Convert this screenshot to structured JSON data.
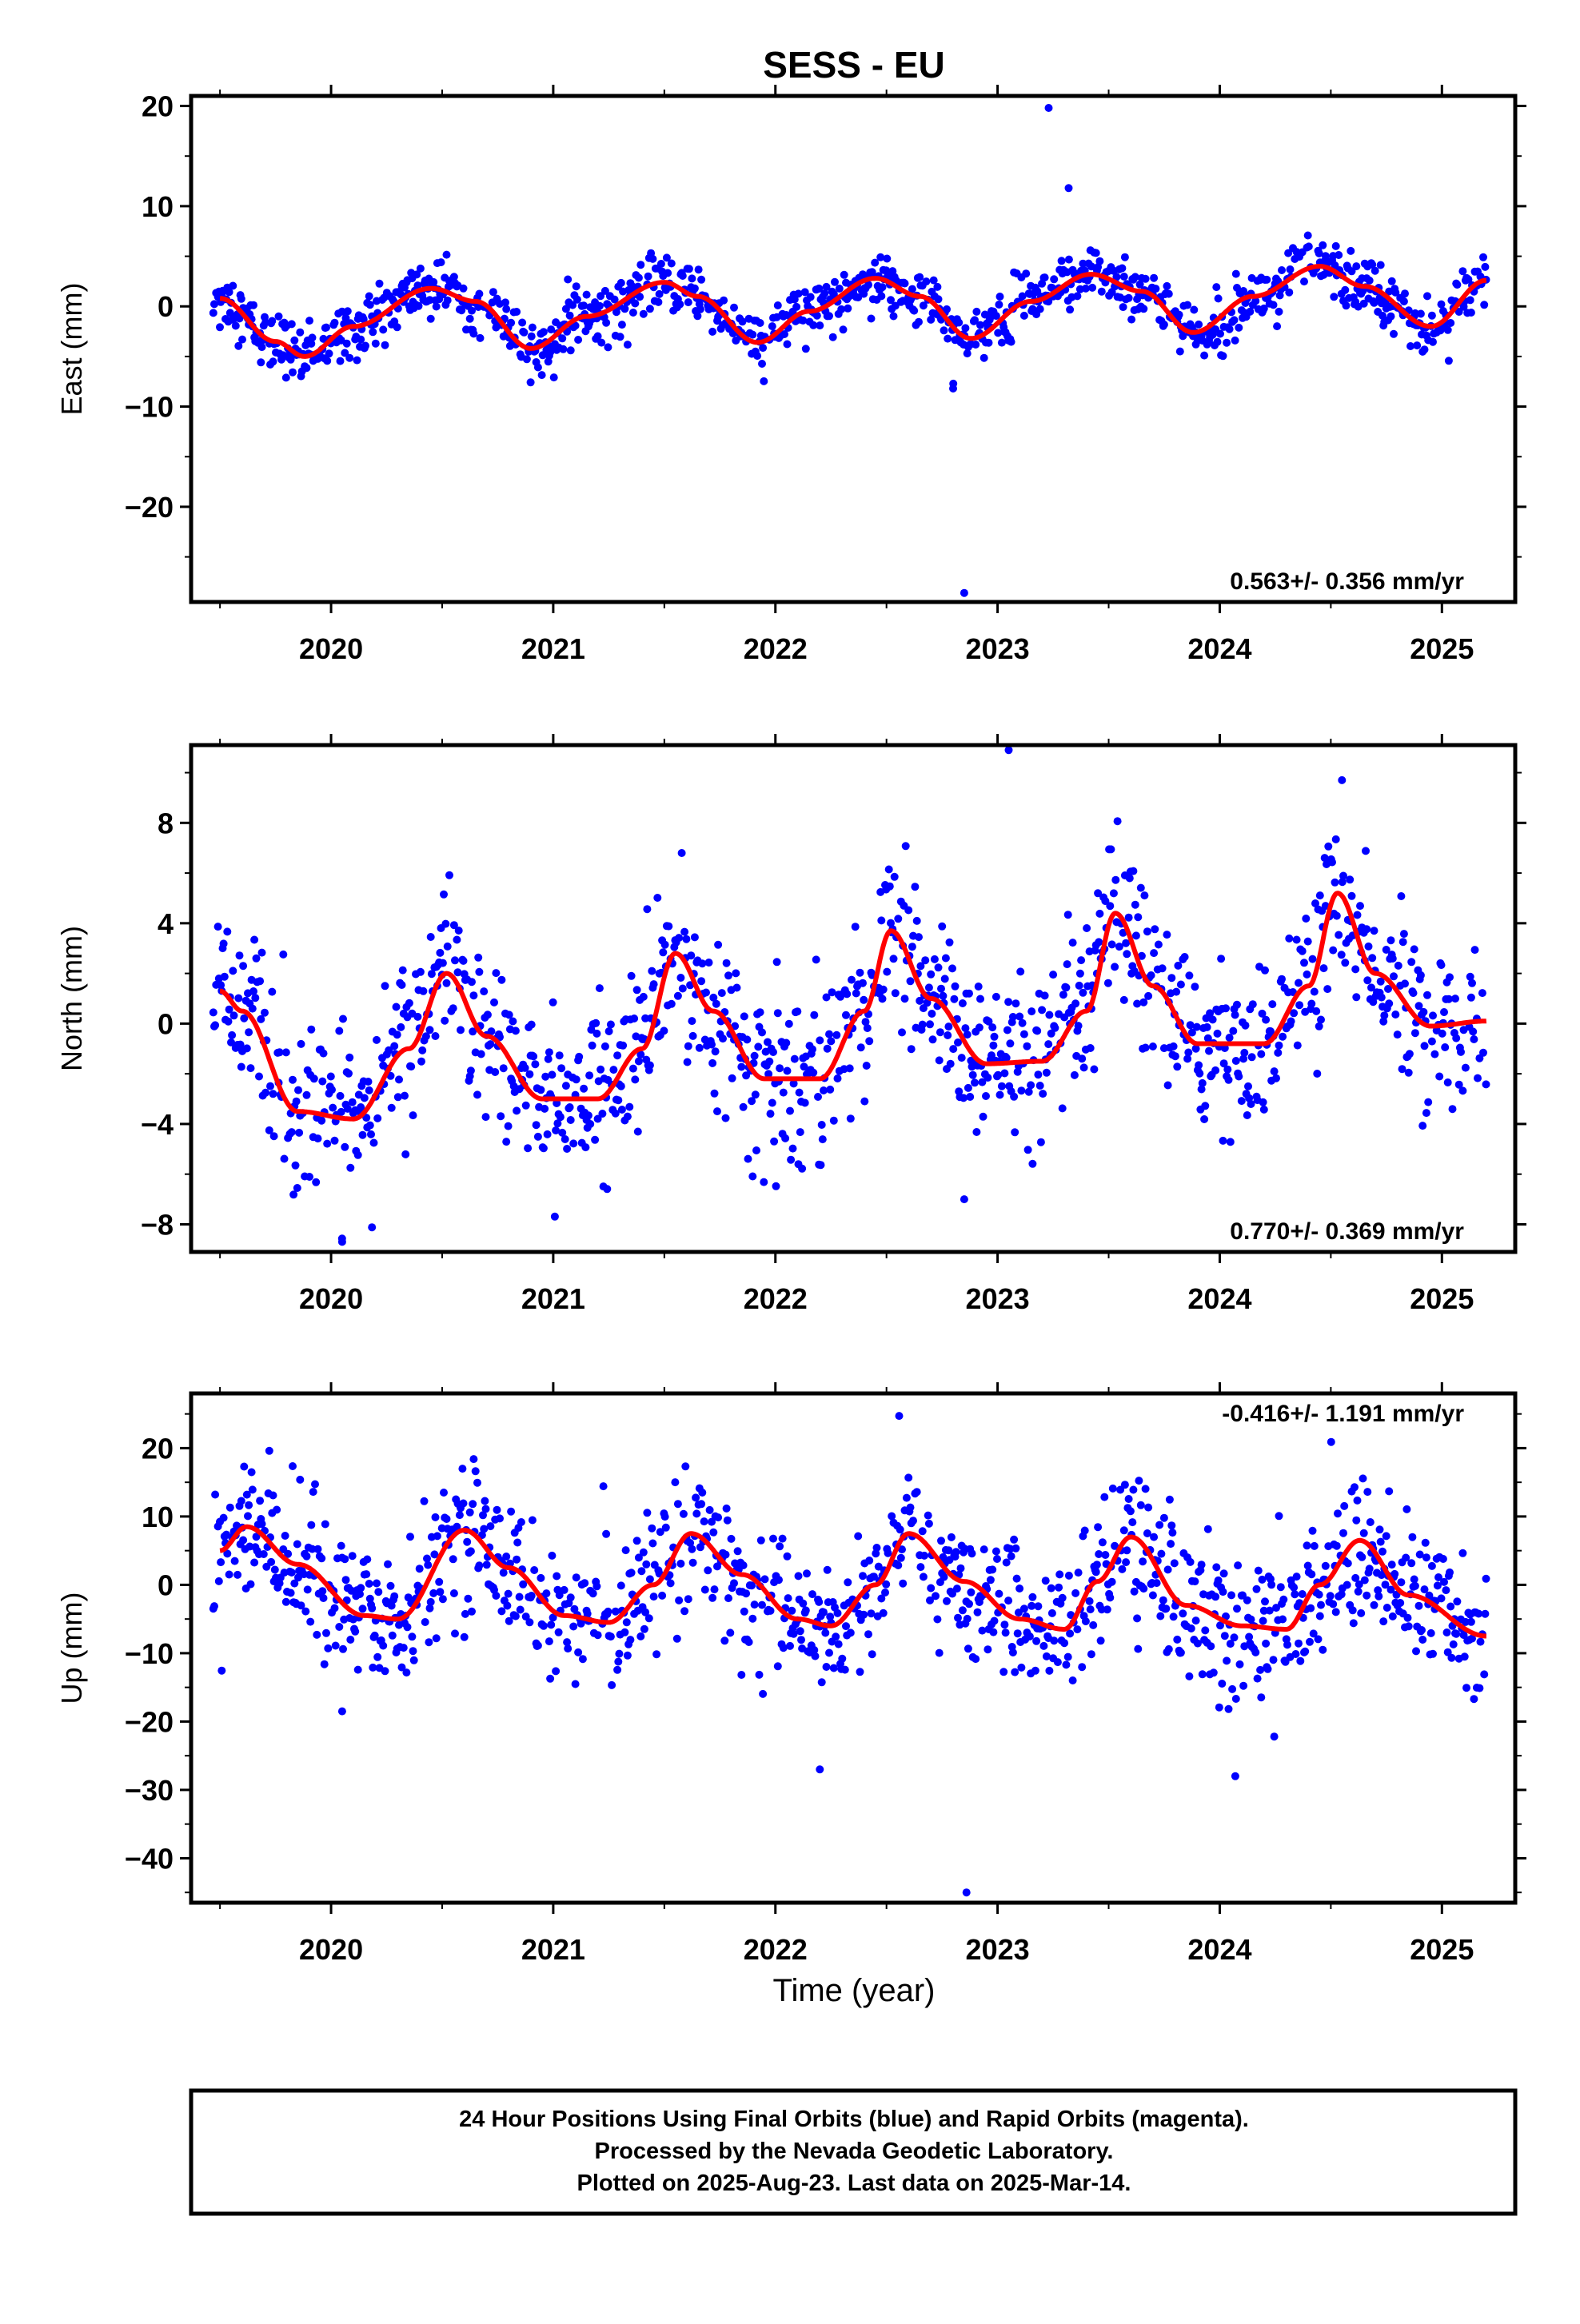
{
  "figure": {
    "title": "SESS - EU",
    "xlabel": "Time (year)",
    "footer_lines": [
      "24 Hour Positions Using Final Orbits (blue) and Rapid Orbits (magenta).",
      "Processed by the Nevada Geodetic Laboratory.",
      "Plotted on 2025-Aug-23. Last data on 2025-Mar-14."
    ],
    "colors": {
      "observations": "#0000ff",
      "model": "#ff0000",
      "frame": "#000000"
    }
  },
  "chart_data": [
    {
      "type": "scatter",
      "ylabel": "East (mm)",
      "xlim": [
        2019.37,
        2025.33
      ],
      "ylim": [
        -29.5,
        21
      ],
      "x_ticks": [
        2020,
        2021,
        2022,
        2023,
        2024,
        2025
      ],
      "y_ticks": [
        -20,
        -10,
        0,
        10,
        20
      ],
      "y_tick_labels": [
        "−20",
        "−10",
        "0",
        "10",
        "20"
      ],
      "rate_label": "0.563+/- 0.356 mm/yr",
      "rate_position": "bottom-right",
      "model": {
        "x": [
          2019.5,
          2019.75,
          2019.88,
          2020.1,
          2020.45,
          2020.65,
          2020.9,
          2021.15,
          2021.5,
          2021.65,
          2021.92,
          2022.15,
          2022.45,
          2022.65,
          2022.88,
          2023.15,
          2023.42,
          2023.65,
          2023.88,
          2024.15,
          2024.45,
          2024.65,
          2024.95,
          2025.2
        ],
        "y": [
          0.8,
          -3.5,
          -5.0,
          -2.0,
          1.8,
          0.5,
          -4.2,
          -1.0,
          2.4,
          1.0,
          -3.6,
          -0.5,
          2.8,
          1.0,
          -3.2,
          0.5,
          3.2,
          1.5,
          -2.6,
          1.0,
          4.0,
          2.0,
          -2.0,
          2.6
        ]
      },
      "outliers": {
        "x": [
          2023.23,
          2023.32,
          2022.85,
          2022.8
        ],
        "y": [
          19.8,
          11.8,
          -28.6,
          -8.2
        ]
      }
    },
    {
      "type": "scatter",
      "ylabel": "North (mm)",
      "xlim": [
        2019.37,
        2025.33
      ],
      "ylim": [
        -9.1,
        11.1
      ],
      "x_ticks": [
        2020,
        2021,
        2022,
        2023,
        2024,
        2025
      ],
      "y_ticks": [
        -8,
        -4,
        0,
        4,
        8
      ],
      "y_tick_labels": [
        "−8",
        "−4",
        "0",
        "4",
        "8"
      ],
      "rate_label": "0.770+/- 0.369 mm/yr",
      "rate_position": "bottom-right",
      "model": {
        "x": [
          2019.5,
          2019.6,
          2019.85,
          2020.1,
          2020.35,
          2020.52,
          2020.7,
          2020.95,
          2021.2,
          2021.4,
          2021.55,
          2021.72,
          2021.95,
          2022.2,
          2022.4,
          2022.52,
          2022.7,
          2022.95,
          2023.2,
          2023.4,
          2023.53,
          2023.7,
          2023.9,
          2024.2,
          2024.4,
          2024.53,
          2024.7,
          2024.95,
          2025.2
        ],
        "y": [
          1.3,
          0.5,
          -3.5,
          -3.8,
          -1.0,
          2.0,
          -0.5,
          -3.0,
          -3.0,
          -1.0,
          2.8,
          0.5,
          -2.2,
          -2.2,
          0.5,
          3.7,
          1.0,
          -1.6,
          -1.5,
          0.5,
          4.4,
          1.5,
          -0.8,
          -0.8,
          1.5,
          5.2,
          2.0,
          -0.1,
          0.1
        ]
      },
      "outliers": {
        "x": [
          2023.05,
          2024.55,
          2020.05,
          2022.85
        ],
        "y": [
          10.9,
          9.7,
          -8.7,
          -7.0
        ]
      }
    },
    {
      "type": "scatter",
      "ylabel": "Up (mm)",
      "xlim": [
        2019.37,
        2025.33
      ],
      "ylim": [
        -46.5,
        28
      ],
      "x_ticks": [
        2020,
        2021,
        2022,
        2023,
        2024,
        2025
      ],
      "y_ticks": [
        -40,
        -30,
        -20,
        -10,
        0,
        10,
        20
      ],
      "y_tick_labels": [
        "−40",
        "−30",
        "−20",
        "−10",
        "0",
        "10",
        "20"
      ],
      "rate_label": "-0.416+/- 1.191 mm/yr",
      "rate_position": "top-right",
      "model": {
        "x": [
          2019.5,
          2019.62,
          2019.85,
          2020.15,
          2020.3,
          2020.6,
          2020.8,
          2021.05,
          2021.25,
          2021.45,
          2021.62,
          2021.85,
          2022.1,
          2022.25,
          2022.45,
          2022.6,
          2022.85,
          2023.1,
          2023.3,
          2023.45,
          2023.6,
          2023.85,
          2024.1,
          2024.3,
          2024.45,
          2024.63,
          2024.85,
          2025.2
        ],
        "y": [
          5.0,
          8.5,
          3.0,
          -4.5,
          -5.0,
          8.0,
          2.5,
          -4.5,
          -5.5,
          0.0,
          7.5,
          1.5,
          -5.0,
          -6.0,
          0.0,
          7.5,
          0.5,
          -5.0,
          -6.5,
          0.5,
          7.0,
          -3.0,
          -6.0,
          -6.5,
          0.0,
          6.5,
          -1.5,
          -7.5
        ]
      },
      "outliers": {
        "x": [
          2022.86,
          2022.2,
          2024.07,
          2020.05
        ],
        "y": [
          -45.0,
          -27.0,
          -28.0,
          -18.5
        ]
      }
    }
  ]
}
